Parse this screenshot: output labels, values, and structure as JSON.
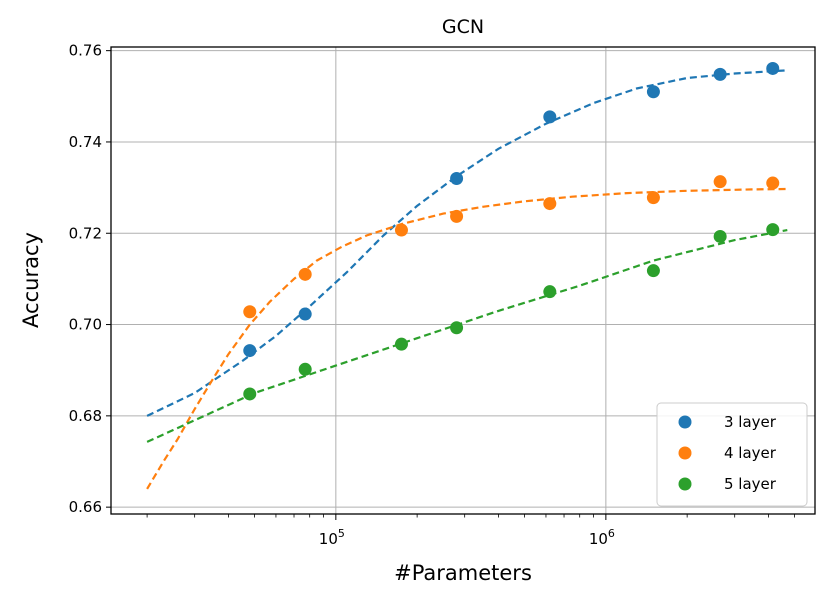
{
  "chart_data": {
    "type": "scatter",
    "title": "GCN",
    "xlabel": "#Parameters",
    "ylabel": "Accuracy",
    "xscale": "log",
    "xlim": [
      14700,
      5950000
    ],
    "ylim": [
      0.6585,
      0.7608
    ],
    "grid": true,
    "legend_position": "lower right",
    "x_ticks": [
      {
        "value": 100000,
        "base": "10",
        "exp": "5"
      },
      {
        "value": 1000000,
        "base": "10",
        "exp": "6"
      }
    ],
    "y_ticks": [
      {
        "value": 0.66,
        "label": "0.66"
      },
      {
        "value": 0.68,
        "label": "0.68"
      },
      {
        "value": 0.7,
        "label": "0.70"
      },
      {
        "value": 0.72,
        "label": "0.72"
      },
      {
        "value": 0.74,
        "label": "0.74"
      },
      {
        "value": 0.76,
        "label": "0.76"
      }
    ],
    "series": [
      {
        "name": "3 layer",
        "color": "#1f77b4",
        "points": [
          [
            48000,
            0.6943
          ],
          [
            77000,
            0.7023
          ],
          [
            280000,
            0.732
          ],
          [
            620000,
            0.7455
          ],
          [
            1500000,
            0.751
          ],
          [
            2650000,
            0.7548
          ],
          [
            4150000,
            0.7561
          ]
        ],
        "fit": [
          [
            20000,
            0.68
          ],
          [
            30000,
            0.685
          ],
          [
            45000,
            0.692
          ],
          [
            60000,
            0.6975
          ],
          [
            80000,
            0.704
          ],
          [
            110000,
            0.7115
          ],
          [
            150000,
            0.7195
          ],
          [
            200000,
            0.726
          ],
          [
            280000,
            0.7325
          ],
          [
            400000,
            0.7385
          ],
          [
            600000,
            0.744
          ],
          [
            900000,
            0.7485
          ],
          [
            1300000,
            0.7517
          ],
          [
            2000000,
            0.754
          ],
          [
            3000000,
            0.755
          ],
          [
            4700000,
            0.7557
          ]
        ]
      },
      {
        "name": "4 layer",
        "color": "#ff7f0e",
        "points": [
          [
            48000,
            0.7028
          ],
          [
            77000,
            0.711
          ],
          [
            175000,
            0.7207
          ],
          [
            280000,
            0.7237
          ],
          [
            620000,
            0.7265
          ],
          [
            1500000,
            0.7278
          ],
          [
            2650000,
            0.7313
          ],
          [
            4150000,
            0.731
          ]
        ],
        "fit": [
          [
            20000,
            0.664
          ],
          [
            23000,
            0.67
          ],
          [
            26000,
            0.675
          ],
          [
            30000,
            0.6815
          ],
          [
            35000,
            0.688
          ],
          [
            40000,
            0.6935
          ],
          [
            48000,
            0.7
          ],
          [
            57000,
            0.705
          ],
          [
            70000,
            0.71
          ],
          [
            85000,
            0.714
          ],
          [
            105000,
            0.717
          ],
          [
            130000,
            0.7195
          ],
          [
            175000,
            0.722
          ],
          [
            250000,
            0.7243
          ],
          [
            350000,
            0.7258
          ],
          [
            500000,
            0.727
          ],
          [
            750000,
            0.728
          ],
          [
            1200000,
            0.7288
          ],
          [
            2000000,
            0.7293
          ],
          [
            3500000,
            0.7296
          ],
          [
            4700000,
            0.7297
          ]
        ]
      },
      {
        "name": "5 layer",
        "color": "#2ca02c",
        "points": [
          [
            48000,
            0.6848
          ],
          [
            77000,
            0.6902
          ],
          [
            175000,
            0.6957
          ],
          [
            280000,
            0.6993
          ],
          [
            620000,
            0.7072
          ],
          [
            1500000,
            0.7118
          ],
          [
            2650000,
            0.7193
          ],
          [
            4150000,
            0.7208
          ]
        ],
        "fit": [
          [
            20000,
            0.6743
          ],
          [
            50000,
            0.685
          ],
          [
            100000,
            0.691
          ],
          [
            200000,
            0.697
          ],
          [
            400000,
            0.703
          ],
          [
            800000,
            0.7085
          ],
          [
            1500000,
            0.714
          ],
          [
            3000000,
            0.7185
          ],
          [
            4700000,
            0.7207
          ]
        ]
      }
    ]
  }
}
